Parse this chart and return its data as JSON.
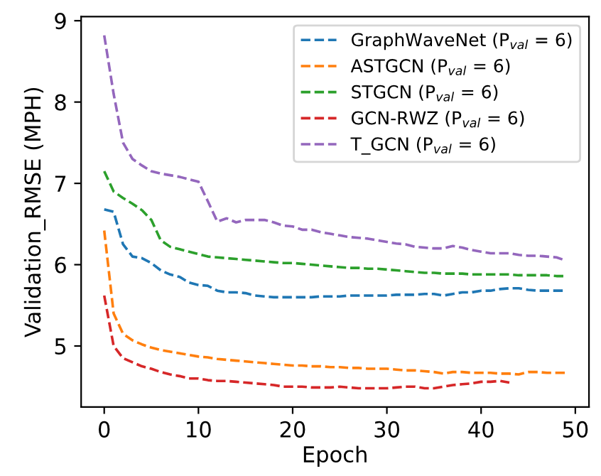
{
  "chart_data": {
    "type": "line",
    "xlabel": "Epoch",
    "ylabel": "Validation_RMSE (MPH)",
    "xlim": [
      -2.45,
      51.45
    ],
    "ylim": [
      4.25,
      9.05
    ],
    "xticks": [
      0,
      10,
      20,
      30,
      40,
      50
    ],
    "yticks": [
      5,
      6,
      7,
      8,
      9
    ],
    "grid": false,
    "legend": "top right",
    "line_style": "dashed",
    "marker": "none",
    "series": [
      {
        "name": "GraphWaveNet (P$_{val}$ = 6)",
        "color": "#1f77b4",
        "values": [
          6.68,
          6.65,
          6.25,
          6.1,
          6.08,
          6.02,
          5.93,
          5.88,
          5.85,
          5.78,
          5.75,
          5.74,
          5.68,
          5.66,
          5.66,
          5.65,
          5.62,
          5.61,
          5.6,
          5.6,
          5.6,
          5.6,
          5.6,
          5.61,
          5.61,
          5.61,
          5.62,
          5.62,
          5.62,
          5.62,
          5.62,
          5.63,
          5.63,
          5.63,
          5.64,
          5.64,
          5.62,
          5.64,
          5.66,
          5.66,
          5.68,
          5.68,
          5.7,
          5.71,
          5.71,
          5.69,
          5.68,
          5.68,
          5.68,
          5.68
        ]
      },
      {
        "name": "ASTGCN (P$_{val}$ = 6)",
        "color": "#ff7f0e",
        "values": [
          6.42,
          5.4,
          5.15,
          5.07,
          5.02,
          4.98,
          4.95,
          4.93,
          4.91,
          4.89,
          4.87,
          4.86,
          4.84,
          4.83,
          4.82,
          4.81,
          4.8,
          4.79,
          4.78,
          4.77,
          4.76,
          4.76,
          4.75,
          4.75,
          4.74,
          4.74,
          4.73,
          4.73,
          4.72,
          4.72,
          4.72,
          4.71,
          4.7,
          4.7,
          4.69,
          4.68,
          4.66,
          4.68,
          4.68,
          4.67,
          4.67,
          4.67,
          4.66,
          4.66,
          4.65,
          4.68,
          4.68,
          4.67,
          4.67,
          4.67
        ]
      },
      {
        "name": "STGCN (P$_{val}$ = 6)",
        "color": "#2ca02c",
        "values": [
          7.15,
          6.9,
          6.82,
          6.75,
          6.67,
          6.55,
          6.3,
          6.22,
          6.19,
          6.16,
          6.13,
          6.1,
          6.09,
          6.08,
          6.07,
          6.06,
          6.05,
          6.04,
          6.03,
          6.02,
          6.02,
          6.01,
          6.0,
          5.99,
          5.98,
          5.97,
          5.96,
          5.96,
          5.95,
          5.95,
          5.94,
          5.93,
          5.92,
          5.91,
          5.9,
          5.9,
          5.89,
          5.89,
          5.89,
          5.88,
          5.88,
          5.88,
          5.88,
          5.88,
          5.87,
          5.87,
          5.87,
          5.87,
          5.86,
          5.86
        ]
      },
      {
        "name": "GCN-RWZ (P$_{val}$ = 6)",
        "color": "#d62728",
        "values": [
          5.62,
          5.0,
          4.85,
          4.8,
          4.75,
          4.72,
          4.68,
          4.65,
          4.63,
          4.6,
          4.6,
          4.58,
          4.57,
          4.57,
          4.56,
          4.55,
          4.54,
          4.53,
          4.52,
          4.5,
          4.5,
          4.5,
          4.49,
          4.49,
          4.49,
          4.5,
          4.49,
          4.48,
          4.48,
          4.48,
          4.48,
          4.49,
          4.5,
          4.5,
          4.48,
          4.48,
          4.5,
          4.52,
          4.53,
          4.54,
          4.56,
          4.56,
          4.57,
          4.55,
          null,
          null,
          null,
          null,
          null,
          null
        ]
      },
      {
        "name": "T_GCN (P$_{val}$ = 6)",
        "color": "#9467bd",
        "values": [
          8.82,
          8.1,
          7.5,
          7.3,
          7.22,
          7.15,
          7.12,
          7.1,
          7.08,
          7.05,
          7.02,
          6.78,
          6.53,
          6.57,
          6.52,
          6.55,
          6.55,
          6.55,
          6.52,
          6.48,
          6.47,
          6.43,
          6.43,
          6.4,
          6.38,
          6.36,
          6.34,
          6.33,
          6.32,
          6.3,
          6.28,
          6.26,
          6.25,
          6.22,
          6.21,
          6.2,
          6.2,
          6.23,
          6.21,
          6.18,
          6.16,
          6.14,
          6.14,
          6.14,
          6.12,
          6.11,
          6.11,
          6.1,
          6.09,
          6.05
        ]
      }
    ],
    "x": [
      0,
      1,
      2,
      3,
      4,
      5,
      6,
      7,
      8,
      9,
      10,
      11,
      12,
      13,
      14,
      15,
      16,
      17,
      18,
      19,
      20,
      21,
      22,
      23,
      24,
      25,
      26,
      27,
      28,
      29,
      30,
      31,
      32,
      33,
      34,
      35,
      36,
      37,
      38,
      39,
      40,
      41,
      42,
      43,
      44,
      45,
      46,
      47,
      48,
      49
    ]
  }
}
